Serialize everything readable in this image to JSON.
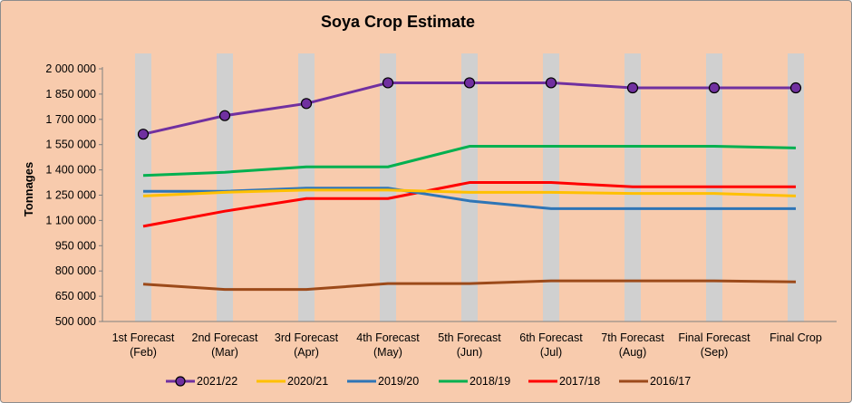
{
  "chart_data": {
    "type": "line",
    "title": "Soya Crop Estimate",
    "xlabel": "",
    "ylabel": "Tonnages",
    "ylim": [
      500000,
      2000000
    ],
    "ytick_step": 150000,
    "yticks": [
      "500 000",
      "650 000",
      "800 000",
      "950 000",
      "1 100 000",
      "1 250 000",
      "1 400 000",
      "1 550 000",
      "1 700 000",
      "1 850 000",
      "2 000 000"
    ],
    "grid": "vertical bands per category",
    "legend_position": "bottom",
    "categories": [
      [
        "1st Forecast",
        "(Feb)"
      ],
      [
        "2nd Forecast",
        "(Mar)"
      ],
      [
        "3rd Forecast",
        "(Apr)"
      ],
      [
        "4th Forecast",
        "(May)"
      ],
      [
        "5th Forecast",
        "(Jun)"
      ],
      [
        "6th Forecast",
        "(Jul)"
      ],
      [
        "7th Forecast",
        "(Aug)"
      ],
      [
        "Final Forecast",
        "(Sep)"
      ],
      [
        "Final Crop",
        ""
      ]
    ],
    "series": [
      {
        "name": "2021/22",
        "color": "#7030a0",
        "marker": "circle",
        "values": [
          1612000,
          1722000,
          1794000,
          1917000,
          1917000,
          1917000,
          1887000,
          1887000,
          1887000
        ]
      },
      {
        "name": "2020/21",
        "color": "#ffc000",
        "marker": "none",
        "values": [
          1245000,
          1267000,
          1280000,
          1280000,
          1267000,
          1267000,
          1260000,
          1260000,
          1245000
        ]
      },
      {
        "name": "2019/20",
        "color": "#2e75b6",
        "marker": "none",
        "values": [
          1273000,
          1273000,
          1292000,
          1292000,
          1216000,
          1170000,
          1170000,
          1170000,
          1170000
        ]
      },
      {
        "name": "2018/19",
        "color": "#00b050",
        "marker": "none",
        "values": [
          1367000,
          1386000,
          1418000,
          1418000,
          1540000,
          1540000,
          1540000,
          1540000,
          1530000
        ]
      },
      {
        "name": "2017/18",
        "color": "#ff0000",
        "marker": "none",
        "values": [
          1065000,
          1155000,
          1230000,
          1230000,
          1325000,
          1325000,
          1300000,
          1300000,
          1300000
        ]
      },
      {
        "name": "2016/17",
        "color": "#9c4a1a",
        "marker": "none",
        "values": [
          722000,
          690000,
          690000,
          725000,
          725000,
          741000,
          741000,
          741000,
          735000
        ]
      }
    ]
  }
}
